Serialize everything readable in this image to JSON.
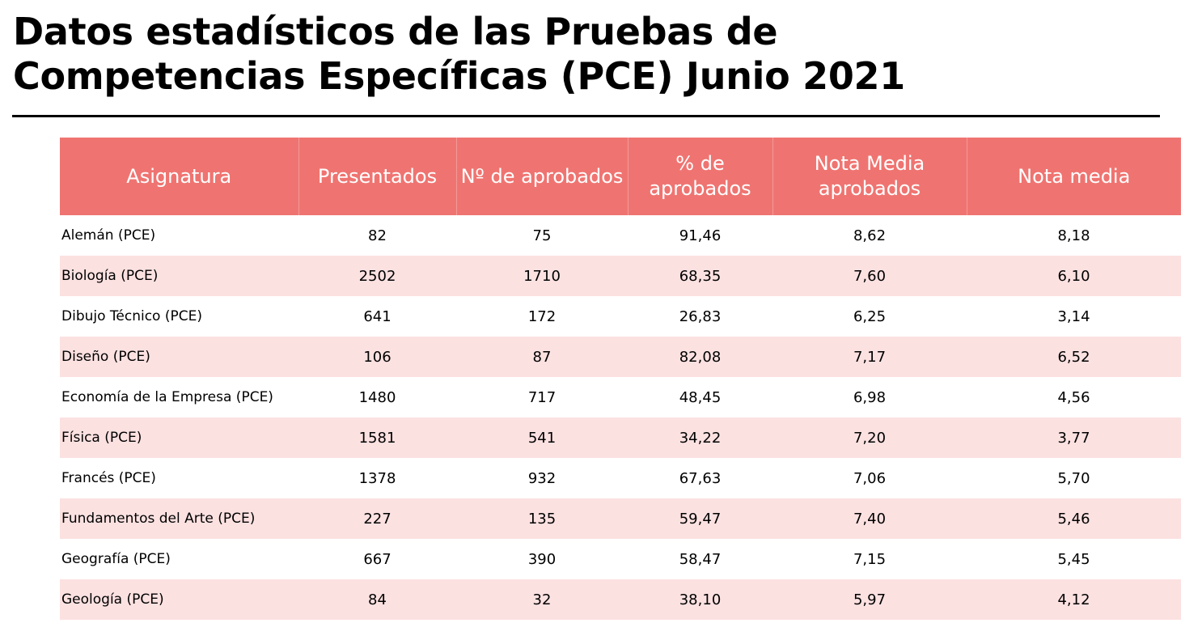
{
  "title": {
    "line1": "Datos estadísticos de las Pruebas de",
    "line2": "Competencias Específicas (PCE) Junio 2021"
  },
  "colors": {
    "header_bg": "#ef7471",
    "header_text": "#ffffff",
    "row_alt_bg": "#fce1e1",
    "title_rule": "#000000"
  },
  "table": {
    "headers": [
      "Asignatura",
      "Presentados",
      "Nº de aprobados",
      "% de aprobados",
      "Nota Media aprobados",
      "Nota media"
    ],
    "rows": [
      [
        "Alemán (PCE)",
        "82",
        "75",
        "91,46",
        "8,62",
        "8,18"
      ],
      [
        "Biología (PCE)",
        "2502",
        "1710",
        "68,35",
        "7,60",
        "6,10"
      ],
      [
        "Dibujo Técnico (PCE)",
        "641",
        "172",
        "26,83",
        "6,25",
        "3,14"
      ],
      [
        "Diseño (PCE)",
        "106",
        "87",
        "82,08",
        "7,17",
        "6,52"
      ],
      [
        "Economía de la Empresa (PCE)",
        "1480",
        "717",
        "48,45",
        "6,98",
        "4,56"
      ],
      [
        "Física (PCE)",
        "1581",
        "541",
        "34,22",
        "7,20",
        "3,77"
      ],
      [
        "Francés (PCE)",
        "1378",
        "932",
        "67,63",
        "7,06",
        "5,70"
      ],
      [
        "Fundamentos del Arte (PCE)",
        "227",
        "135",
        "59,47",
        "7,40",
        "5,46"
      ],
      [
        "Geografía (PCE)",
        "667",
        "390",
        "58,47",
        "7,15",
        "5,45"
      ],
      [
        "Geología (PCE)",
        "84",
        "32",
        "38,10",
        "5,97",
        "4,12"
      ]
    ]
  }
}
